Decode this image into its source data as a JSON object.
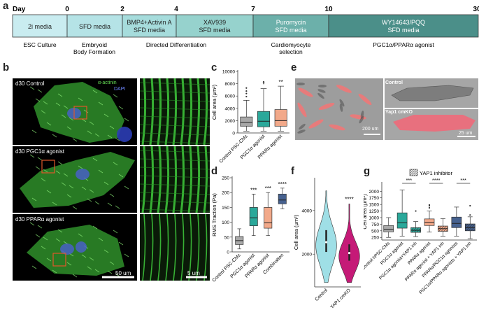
{
  "panels": {
    "a": "a",
    "b": "b",
    "c": "c",
    "d": "d",
    "e": "e",
    "f": "f",
    "g": "g"
  },
  "timeline": {
    "day_label": "Day",
    "ticks": [
      "0",
      "2",
      "4",
      "7",
      "10",
      "30"
    ],
    "stages": [
      {
        "text": "2i media",
        "color": "#c9ecf0"
      },
      {
        "text": "SFD media",
        "color": "#b5e3e6"
      },
      {
        "text": "BMP4+Activin A\nSFD media",
        "color": "#a6dcdc"
      },
      {
        "text": "XAV939\nSFD media",
        "color": "#96d2cd"
      },
      {
        "text": "Puromycin\nSFD media",
        "color": "#6cb0aa"
      },
      {
        "text": "WY14643/PQQ\nSFD media",
        "color": "#4b8f89"
      }
    ],
    "below_labels": [
      "ESC Culture",
      "Embryoid\nBody Formation",
      "Directed Differentiation",
      "Cardiomyocyte\nselection",
      "PGC1α/PPARα agonist"
    ]
  },
  "panel_b": {
    "rows": [
      "d30 Control",
      "d30 PGC1α agonist",
      "d30 PPARα agonist"
    ],
    "legend": [
      "α-actinin",
      "DAPI"
    ],
    "scale_left": "50 um",
    "scale_right": "5 um"
  },
  "panel_e": {
    "scale_left": "200 um",
    "labels": [
      "Control",
      "Yap1 cmKO"
    ],
    "scale_right": "25 um"
  },
  "chart_data": [
    {
      "panel": "c",
      "type": "box",
      "ylabel": "Cell area (μm²)",
      "ylim": [
        0,
        10000
      ],
      "yticks": [
        0,
        2000,
        4000,
        6000,
        8000,
        10000
      ],
      "categories": [
        "Control PSC-CMs",
        "PGC1α agonist",
        "PPARα agonist"
      ],
      "colors": [
        "#a8a8a8",
        "#2aa89a",
        "#f2a98a"
      ],
      "boxes": [
        {
          "min": 300,
          "q1": 1100,
          "median": 1700,
          "q3": 2600,
          "max": 5300,
          "outliers": [
            5900,
            6400,
            6800,
            7300
          ]
        },
        {
          "min": 300,
          "q1": 1000,
          "median": 1900,
          "q3": 3500,
          "max": 7200,
          "outliers": [
            8300
          ]
        },
        {
          "min": 300,
          "q1": 1100,
          "median": 2000,
          "q3": 3800,
          "max": 7600,
          "outliers": []
        }
      ],
      "significance": [
        "",
        "*",
        "**"
      ]
    },
    {
      "panel": "d",
      "type": "box",
      "ylabel": "RMS Traction (Pa)",
      "ylim": [
        0,
        250
      ],
      "yticks": [
        0,
        50,
        100,
        150,
        200,
        250
      ],
      "categories": [
        "Control PSC-CMs",
        "PGC1α agonist",
        "PPARα agonist",
        "Combination"
      ],
      "colors": [
        "#a8a8a8",
        "#2aa89a",
        "#f2a98a",
        "#46618f"
      ],
      "boxes": [
        {
          "min": 10,
          "q1": 25,
          "median": 38,
          "q3": 52,
          "max": 78,
          "outliers": []
        },
        {
          "min": 55,
          "q1": 88,
          "median": 115,
          "q3": 150,
          "max": 195,
          "outliers": []
        },
        {
          "min": 55,
          "q1": 80,
          "median": 98,
          "q3": 150,
          "max": 200,
          "outliers": []
        },
        {
          "min": 145,
          "q1": 162,
          "median": 175,
          "q3": 195,
          "max": 215,
          "outliers": []
        }
      ],
      "significance": [
        "",
        "***",
        "***",
        "****"
      ]
    },
    {
      "panel": "f",
      "type": "violin",
      "ylabel": "Cell area (μm²)",
      "ylim": [
        500,
        5500
      ],
      "yticks": [
        2000,
        4000
      ],
      "categories": [
        "Control",
        "YAP1 cmKO"
      ],
      "colors": [
        "#9fdfe6",
        "#c51a77"
      ],
      "distributions": [
        {
          "min": 700,
          "max": 4900,
          "median": 2550,
          "q1": 2100,
          "q3": 3100,
          "mode": 2400
        },
        {
          "min": 700,
          "max": 4300,
          "median": 2050,
          "q1": 1700,
          "q3": 2450,
          "mode": 1900
        }
      ],
      "significance": [
        "",
        "****"
      ]
    },
    {
      "panel": "g",
      "type": "box",
      "ylabel": "Cell area (μm²)",
      "ylim": [
        150,
        2300
      ],
      "yticks": [
        250,
        500,
        750,
        1000,
        1250,
        1500,
        1750,
        2000
      ],
      "legend": "YAP1 inhibitor",
      "categories": [
        "Control hPSC-CMs",
        "PGC1α agonist",
        "PGC1α agonist+YAP1 inh",
        "PPARα agonist",
        "PPARα agonist + YAP1 inh",
        "PPARα/PGC1α agonists",
        "PGC1α/PPARα agonists + YAP1 inh"
      ],
      "colors": [
        "#a8a8a8",
        "#2aa89a",
        "#2aa89a",
        "#f2a98a",
        "#f2a98a",
        "#46618f",
        "#46618f"
      ],
      "hatched": [
        false,
        false,
        true,
        false,
        true,
        false,
        true
      ],
      "boxes": [
        {
          "min": 250,
          "q1": 460,
          "median": 560,
          "q3": 700,
          "max": 1000,
          "outliers": []
        },
        {
          "min": 300,
          "q1": 600,
          "median": 800,
          "q3": 1180,
          "max": 2050,
          "outliers": []
        },
        {
          "min": 280,
          "q1": 440,
          "median": 520,
          "q3": 620,
          "max": 850,
          "outliers": [
            1250
          ]
        },
        {
          "min": 450,
          "q1": 700,
          "median": 820,
          "q3": 950,
          "max": 1250,
          "outliers": [
            1370,
            1450,
            1480
          ]
        },
        {
          "min": 300,
          "q1": 480,
          "median": 580,
          "q3": 680,
          "max": 960,
          "outliers": []
        },
        {
          "min": 300,
          "q1": 620,
          "median": 780,
          "q3": 1020,
          "max": 1400,
          "outliers": []
        },
        {
          "min": 200,
          "q1": 500,
          "median": 620,
          "q3": 760,
          "max": 1030,
          "outliers": [
            1100,
            1450
          ]
        }
      ],
      "significance_brackets": [
        {
          "from": 1,
          "to": 2,
          "label": "***"
        },
        {
          "from": 3,
          "to": 4,
          "label": "****"
        },
        {
          "from": 5,
          "to": 6,
          "label": "***"
        }
      ]
    }
  ]
}
